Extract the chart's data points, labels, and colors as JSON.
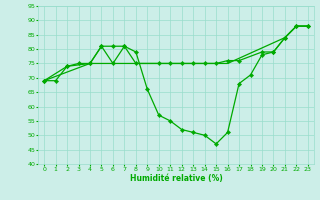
{
  "xlabel": "Humidité relative (%)",
  "bg_color": "#cceee8",
  "grid_color": "#99ddcc",
  "line_color": "#00aa00",
  "xlim": [
    -0.5,
    23.5
  ],
  "ylim": [
    40,
    95
  ],
  "yticks": [
    40,
    45,
    50,
    55,
    60,
    65,
    70,
    75,
    80,
    85,
    90,
    95
  ],
  "xticks": [
    0,
    1,
    2,
    3,
    4,
    5,
    6,
    7,
    8,
    9,
    10,
    11,
    12,
    13,
    14,
    15,
    16,
    17,
    18,
    19,
    20,
    21,
    22,
    23
  ],
  "line1_x": [
    0,
    1,
    2,
    3,
    4,
    5,
    6,
    7,
    8,
    9,
    10,
    11,
    12,
    13,
    14,
    15,
    16,
    17,
    18,
    19,
    20,
    21,
    22,
    23
  ],
  "line1_y": [
    69,
    69,
    74,
    75,
    75,
    81,
    81,
    81,
    79,
    66,
    57,
    55,
    52,
    51,
    50,
    47,
    51,
    68,
    71,
    78,
    79,
    84,
    88,
    88
  ],
  "line2_x": [
    0,
    2,
    4,
    5,
    6,
    7,
    8,
    10,
    11,
    12,
    13,
    14,
    15,
    16,
    17,
    19,
    20,
    21,
    22,
    23
  ],
  "line2_y": [
    69,
    74,
    75,
    81,
    75,
    81,
    75,
    75,
    75,
    75,
    75,
    75,
    75,
    76,
    76,
    79,
    79,
    84,
    88,
    88
  ],
  "line3_x": [
    0,
    4,
    8,
    16,
    21,
    22,
    23
  ],
  "line3_y": [
    69,
    75,
    75,
    75,
    84,
    88,
    88
  ]
}
